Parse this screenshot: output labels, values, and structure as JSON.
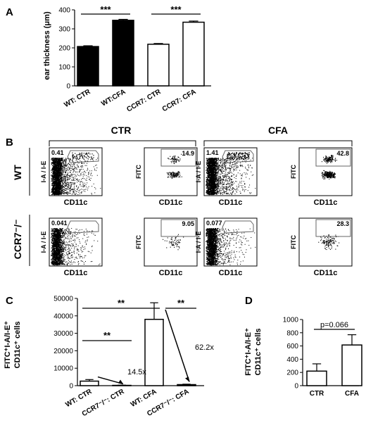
{
  "panel_letters": [
    "A",
    "B",
    "C",
    "D"
  ],
  "chart_data": [
    {
      "panel": "A",
      "type": "bar",
      "categories": [
        "WT: CTR",
        "WT:CFA",
        "CCR7: CTR",
        "CCR7: CFA"
      ],
      "values": [
        207,
        345,
        219,
        335
      ],
      "errors": [
        4,
        5,
        4,
        6
      ],
      "fills": [
        "#000000",
        "#000000",
        "#ffffff",
        "#ffffff"
      ],
      "ylabel": "ear thickness (μm)",
      "ylim": [
        0,
        400
      ],
      "yticks": [
        "0",
        "100",
        "200",
        "300",
        "400"
      ],
      "significance": [
        {
          "from": 0,
          "to": 1,
          "label": "***"
        },
        {
          "from": 2,
          "to": 3,
          "label": "***"
        }
      ]
    },
    {
      "panel": "C",
      "type": "bar",
      "categories": [
        "WT: CTR",
        "CCR7⁻/⁻: CTR",
        "WT: CFA",
        "CCR7⁻/⁻: CFA"
      ],
      "values": [
        2600,
        180,
        38000,
        610
      ],
      "errors": [
        900,
        120,
        9500,
        250
      ],
      "ylabel_lines": [
        "FITC⁺I-A/I-E⁺",
        "CD11c⁺ cells"
      ],
      "ylim": [
        0,
        50000
      ],
      "yticks": [
        "0",
        "10000",
        "20000",
        "30000",
        "40000",
        "50000"
      ],
      "significance": [
        {
          "from": 0,
          "to": 1,
          "label": "**"
        },
        {
          "from": 0,
          "to": 2,
          "label": "**"
        },
        {
          "from": 2,
          "to": 3,
          "label": "**"
        }
      ],
      "fold_annotations": [
        "14.5x",
        "62.2x"
      ]
    },
    {
      "panel": "D",
      "type": "bar",
      "categories": [
        "CTR",
        "CFA"
      ],
      "values": [
        220,
        615
      ],
      "errors": [
        110,
        155
      ],
      "ylabel_lines": [
        "FITC⁺I-A/I-E⁺",
        "CD11c⁺ cells"
      ],
      "ylim": [
        0,
        1000
      ],
      "yticks": [
        "0",
        "200",
        "400",
        "600",
        "800",
        "1000"
      ],
      "significance": [
        {
          "from": 0,
          "to": 1,
          "label": "p=0.066"
        }
      ]
    }
  ],
  "flow": {
    "column_headers": [
      "CTR",
      "CFA"
    ],
    "row_labels": [
      "WT",
      "CCR7⁻/⁻"
    ],
    "x_axis_label": "CD11c",
    "y_axis_label_mhc": "I-A / I-E",
    "y_axis_label_fitc": "FITC",
    "plots": [
      {
        "row": 0,
        "col": 0,
        "type": "mhc",
        "gate_value": "0.41"
      },
      {
        "row": 0,
        "col": 1,
        "type": "fitc",
        "gate_value": "14.9"
      },
      {
        "row": 0,
        "col": 2,
        "type": "mhc",
        "gate_value": "1.41"
      },
      {
        "row": 0,
        "col": 3,
        "type": "fitc",
        "gate_value": "42.8"
      },
      {
        "row": 1,
        "col": 0,
        "type": "mhc",
        "gate_value": "0.041"
      },
      {
        "row": 1,
        "col": 1,
        "type": "fitc",
        "gate_value": "9.05"
      },
      {
        "row": 1,
        "col": 2,
        "type": "mhc",
        "gate_value": "0.077"
      },
      {
        "row": 1,
        "col": 3,
        "type": "fitc",
        "gate_value": "28.3"
      }
    ]
  }
}
